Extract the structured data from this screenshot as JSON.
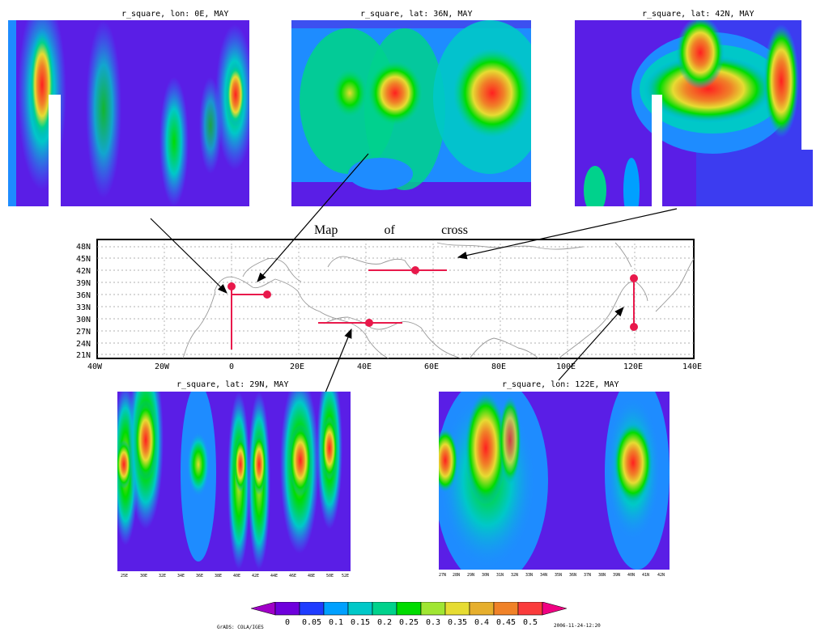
{
  "panels": [
    {
      "id": "p1",
      "title": "r_square, lon: 0E, MAY"
    },
    {
      "id": "p2",
      "title": "r_square, lat: 36N, MAY"
    },
    {
      "id": "p3",
      "title": "r_square, lat: 42N, MAY"
    },
    {
      "id": "p4",
      "title": "r_square, lat: 29N, MAY",
      "ticks": [
        "25E",
        "30E",
        "32E",
        "34E",
        "36E",
        "38E",
        "40E",
        "42E",
        "44E",
        "46E",
        "48E",
        "50E",
        "52E"
      ]
    },
    {
      "id": "p5",
      "title": "r_square, lon: 122E, MAY",
      "ticks": [
        "27N",
        "28N",
        "29N",
        "30N",
        "31N",
        "32N",
        "33N",
        "34N",
        "35N",
        "36N",
        "37N",
        "38N",
        "39N",
        "40N",
        "41N",
        "42N"
      ]
    }
  ],
  "map": {
    "title_words": [
      "Map",
      "of",
      "cross"
    ],
    "lat_ticks": [
      "48N",
      "45N",
      "42N",
      "39N",
      "36N",
      "33N",
      "30N",
      "27N",
      "24N",
      "21N"
    ],
    "lon_ticks": [
      "40W",
      "20W",
      "0",
      "20E",
      "40E",
      "60E",
      "80E",
      "100E",
      "120E",
      "140E"
    ]
  },
  "colorbar": {
    "labels": [
      "0",
      "0.05",
      "0.1",
      "0.15",
      "0.2",
      "0.25",
      "0.3",
      "0.35",
      "0.4",
      "0.45",
      "0.5"
    ],
    "colors": [
      "#a000c8",
      "#6e00dc",
      "#1e3cff",
      "#00a0ff",
      "#00c8c8",
      "#00d28c",
      "#00dc00",
      "#a0e632",
      "#e6dc32",
      "#e6af2d",
      "#f08228",
      "#fa3c3c",
      "#f00082"
    ],
    "credit": "GrADS: COLA/IGES",
    "timestamp": "2006-11-24-12:20"
  }
}
